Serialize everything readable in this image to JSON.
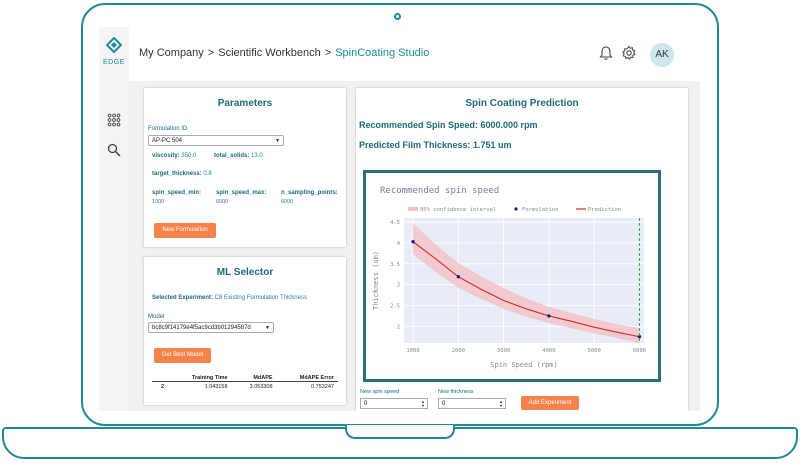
{
  "header": {
    "breadcrumb": [
      "My Company",
      "Scientific Workbench",
      "SpinCoating Studio"
    ],
    "separator": ">",
    "avatar_initials": "AK"
  },
  "logo": {
    "text": "EDGE",
    "icon": "edge-diamond-logo"
  },
  "sidebar": {
    "items": [
      {
        "icon": "apps-grid-icon"
      },
      {
        "icon": "search-icon"
      }
    ]
  },
  "parameters": {
    "title": "Parameters",
    "formulation_label": "Formulation ID",
    "formulation_value": "AP-PC 504",
    "viscosity_label": "viscosity:",
    "viscosity_value": "350.0",
    "total_solids_label": "total_solids:",
    "total_solids_value": "13.0",
    "target_thickness_label": "target_thickness:",
    "target_thickness_value": "0.8",
    "spin_speed_min_label": "spin_speed_min:",
    "spin_speed_min_value": "1000",
    "spin_speed_max_label": "spin_speed_max:",
    "spin_speed_max_value": "6000",
    "n_sampling_points_label": "n_sampling_points:",
    "n_sampling_points_value": "6000",
    "new_formulation_button": "New Formulation"
  },
  "ml_selector": {
    "title": "ML Selector",
    "selected_label": "Selected Experiment:",
    "selected_value": "C8 Existing Formulation Thickness",
    "model_label": "Model",
    "model_value": "bc8c9f14179e4f5ac9cd3b01294587d",
    "get_best_button": "Get Best Model",
    "table": {
      "headers": [
        "",
        "Training Time",
        "MdAPE",
        "MdAPE Error"
      ],
      "rows": [
        [
          "2",
          "1.043158",
          "3.053308",
          "0.753247"
        ]
      ]
    }
  },
  "prediction": {
    "title": "Spin Coating Prediction",
    "recommended": "Recommended Spin Speed: 6000.000 rpm",
    "thickness": "Predicted Film Thickness: 1.751 um",
    "new_spin_label": "New spin speed",
    "new_spin_value": "0",
    "new_thickness_label": "New thickness",
    "new_thickness_value": "0",
    "add_button": "Add Experiment"
  },
  "chart_data": {
    "type": "line",
    "title": "Recommended spin speed",
    "xlabel": "Spin Speed (rpm)",
    "ylabel": "Thickness (um)",
    "xlim": [
      800,
      6100
    ],
    "ylim": [
      1.6,
      4.6
    ],
    "xticks": [
      1000,
      2000,
      3000,
      4000,
      5000,
      6000
    ],
    "yticks": [
      2,
      2.5,
      3,
      3.5,
      4,
      4.5
    ],
    "legend": [
      "95% confidence interval",
      "Formulation",
      "Prediction"
    ],
    "legend_position": "top",
    "prediction_line": {
      "x": [
        1000,
        1500,
        2000,
        2500,
        3000,
        3500,
        4000,
        4500,
        5000,
        5500,
        6000
      ],
      "y": [
        4.03,
        3.62,
        3.19,
        2.89,
        2.62,
        2.42,
        2.25,
        2.12,
        1.98,
        1.86,
        1.75
      ]
    },
    "ci_upper": [
      4.47,
      3.96,
      3.52,
      3.2,
      2.92,
      2.67,
      2.47,
      2.32,
      2.18,
      2.05,
      1.95
    ],
    "ci_lower": [
      3.73,
      3.3,
      2.93,
      2.66,
      2.42,
      2.23,
      2.08,
      1.95,
      1.83,
      1.72,
      1.6
    ],
    "formulation_points": {
      "x": [
        1000,
        2000,
        4000,
        6000
      ],
      "y": [
        4.03,
        3.19,
        2.25,
        1.75
      ]
    },
    "vline_x": 6000,
    "colors": {
      "band": "#f2c4c8",
      "line": "#d92b2b",
      "points": "#1d1d8f",
      "vline": "#3fa046",
      "grid": "#ffffff",
      "plot_bg": "#e8ecf6"
    }
  }
}
